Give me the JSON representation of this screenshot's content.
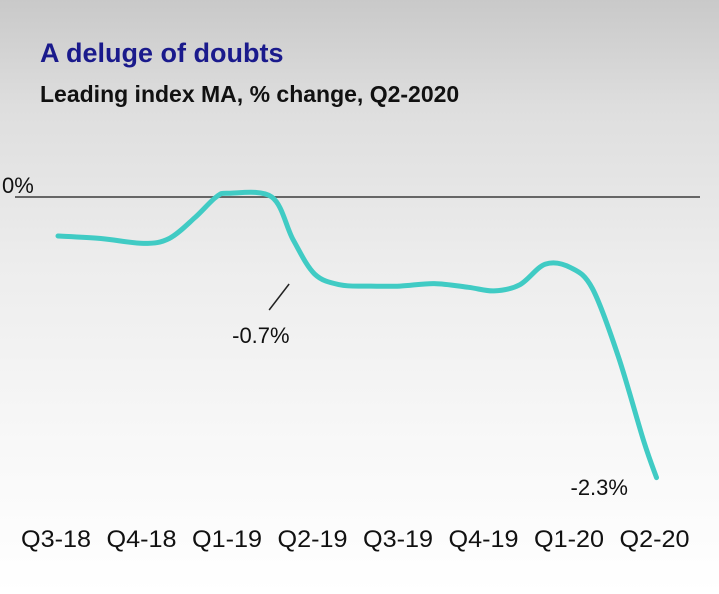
{
  "chart_data": {
    "type": "line",
    "title": "A deluge of doubts",
    "subtitle": "Leading index MA, % change, Q2-2020",
    "categories": [
      "Q3-18",
      "Q4-18",
      "Q1-19",
      "Q2-19",
      "Q3-19",
      "Q4-19",
      "Q1-20",
      "Q2-20"
    ],
    "x": [
      0,
      0.5,
      1,
      1.3,
      1.6,
      1.85,
      2,
      2.5,
      2.75,
      3,
      3.3,
      3.65,
      4,
      4.4,
      4.8,
      5.1,
      5.4,
      5.7,
      6,
      6.25,
      6.55,
      6.85,
      7
    ],
    "series": [
      {
        "values": [
          -0.32,
          -0.34,
          -0.38,
          -0.34,
          -0.17,
          0.0,
          0.03,
          0.0,
          -0.35,
          -0.63,
          -0.72,
          -0.73,
          -0.73,
          -0.71,
          -0.74,
          -0.77,
          -0.72,
          -0.55,
          -0.58,
          -0.75,
          -1.3,
          -2.0,
          -2.3
        ],
        "color": "#40cbc4"
      }
    ],
    "baseline": {
      "value": 0,
      "label": "0%",
      "color": "#666666"
    },
    "annotations": [
      {
        "x": 2.75,
        "y": -0.7,
        "label": "-0.7%"
      },
      {
        "x": 7,
        "y": -2.3,
        "label": "-2.3%"
      }
    ],
    "ylim": [
      -2.4,
      0.35
    ],
    "grid": false,
    "legend": "none"
  }
}
